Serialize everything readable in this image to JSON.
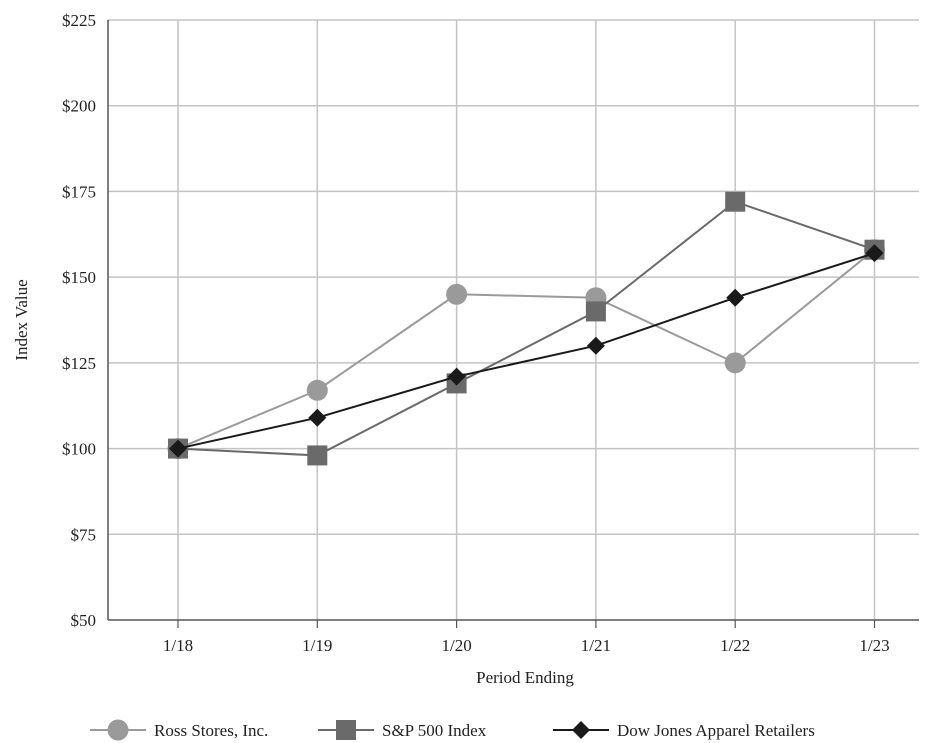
{
  "chart_data": {
    "type": "line",
    "xlabel": "Period Ending",
    "ylabel": "Index Value",
    "categories": [
      "1/18",
      "1/19",
      "1/20",
      "1/21",
      "1/22",
      "1/23"
    ],
    "ylim": [
      50,
      225
    ],
    "yticks": [
      {
        "value": 50,
        "label": "$50"
      },
      {
        "value": 75,
        "label": "$75"
      },
      {
        "value": 100,
        "label": "$100"
      },
      {
        "value": 125,
        "label": "$125"
      },
      {
        "value": 150,
        "label": "$150"
      },
      {
        "value": 175,
        "label": "$175"
      },
      {
        "value": 200,
        "label": "$200"
      },
      {
        "value": 225,
        "label": "$225"
      }
    ],
    "grid": true,
    "legend_position": "bottom",
    "series": [
      {
        "name": "Ross Stores, Inc.",
        "values": [
          100,
          117,
          145,
          144,
          125,
          158
        ],
        "marker": "circle",
        "color": "#9a9a9a"
      },
      {
        "name": "S&P 500 Index",
        "values": [
          100,
          98,
          119,
          140,
          172,
          158
        ],
        "marker": "square",
        "color": "#6a6a6a"
      },
      {
        "name": "Dow Jones Apparel Retailers",
        "values": [
          100,
          109,
          121,
          130,
          144,
          157
        ],
        "marker": "diamond",
        "color": "#1a1a1a"
      }
    ]
  }
}
